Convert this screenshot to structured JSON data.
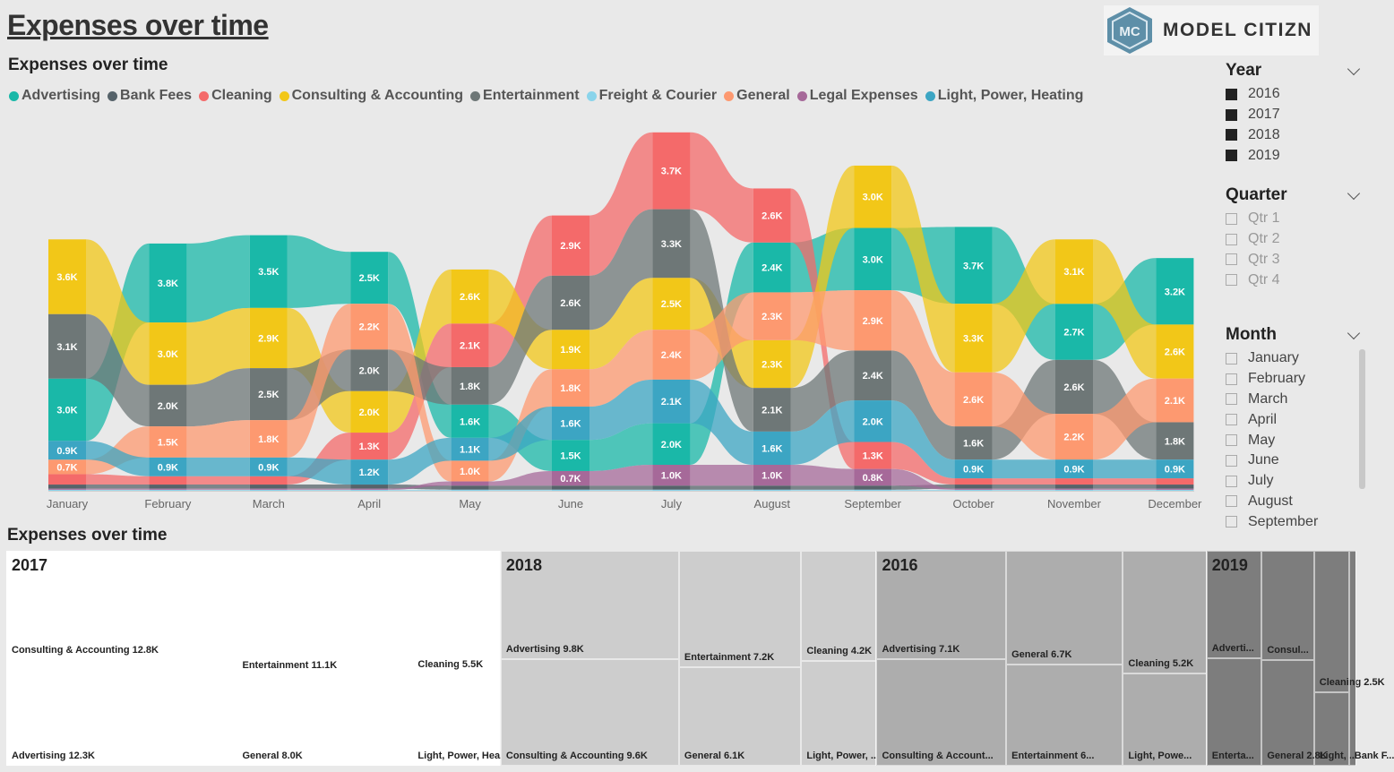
{
  "page": {
    "title": "Expenses over time"
  },
  "logo": {
    "text": "MODEL CITIZN",
    "glyph": "MC"
  },
  "ribbon": {
    "title": "Expenses over time"
  },
  "treemap": {
    "title": "Expenses over time"
  },
  "colors": {
    "Advertising": "#1ab8a8",
    "Bank Fees": "#56636a",
    "Cleaning": "#f46a6a",
    "Consulting & Accounting": "#f2c718",
    "Entertainment": "#6e7777",
    "Freight & Courier": "#8ad4eb",
    "General": "#fd9970",
    "Legal Expenses": "#a66999",
    "Light, Power, Heating": "#3ca5c3"
  },
  "chart_data": [
    {
      "type": "ribbon",
      "title": "Expenses over time",
      "legend_position": "top-left",
      "legend": [
        "Advertising",
        "Bank Fees",
        "Cleaning",
        "Consulting & Accounting",
        "Entertainment",
        "Freight & Courier",
        "General",
        "Legal Expenses",
        "Light, Power, Heating"
      ],
      "categories": [
        "January",
        "February",
        "March",
        "April",
        "May",
        "June",
        "July",
        "August",
        "September",
        "October",
        "November",
        "December"
      ],
      "series": [
        {
          "name": "Advertising",
          "values": [
            3.0,
            3.8,
            3.5,
            2.5,
            1.6,
            1.5,
            2.0,
            2.4,
            3.0,
            3.7,
            2.7,
            3.2
          ],
          "labels": [
            "3.0K",
            "3.8K",
            "3.5K",
            "2.5K",
            "1.6K",
            "1.5K",
            "2.0K",
            "2.4K",
            "3.0K",
            "3.7K",
            "2.7K",
            "3.2K"
          ]
        },
        {
          "name": "Bank Fees",
          "values": [
            0.2,
            0.2,
            0.2,
            0.2,
            0.2,
            0.2,
            0.2,
            0.2,
            0.2,
            0.2,
            0.2,
            0.2
          ],
          "labels": [
            "",
            "",
            "",
            "",
            "",
            "",
            "",
            "",
            "",
            "",
            "",
            ""
          ]
        },
        {
          "name": "Cleaning",
          "values": [
            0.5,
            0.4,
            0.4,
            1.3,
            2.1,
            2.9,
            3.7,
            2.6,
            1.3,
            0.3,
            0.3,
            0.3
          ],
          "labels": [
            "",
            "",
            "",
            "1.3K",
            "2.1K",
            "2.9K",
            "3.7K",
            "2.6K",
            "1.3K",
            "",
            "",
            ""
          ]
        },
        {
          "name": "Consulting & Accounting",
          "values": [
            3.6,
            3.0,
            2.9,
            2.0,
            2.6,
            1.9,
            2.5,
            2.3,
            3.0,
            3.3,
            3.1,
            2.6
          ],
          "labels": [
            "3.6K",
            "3.0K",
            "2.9K",
            "2.0K",
            "2.6K",
            "1.9K",
            "2.5K",
            "2.3K",
            "3.0K",
            "3.3K",
            "3.1K",
            "2.6K"
          ]
        },
        {
          "name": "Entertainment",
          "values": [
            3.1,
            2.0,
            2.5,
            2.0,
            1.8,
            2.6,
            3.3,
            2.1,
            2.4,
            1.6,
            2.6,
            1.8
          ],
          "labels": [
            "3.1K",
            "2.0K",
            "2.5K",
            "2.0K",
            "1.8K",
            "2.6K",
            "3.3K",
            "2.1K",
            "2.4K",
            "1.6K",
            "2.6K",
            "1.8K"
          ]
        },
        {
          "name": "Freight & Courier",
          "values": [
            0.05,
            0.05,
            0.05,
            0.05,
            0.05,
            0.05,
            0.05,
            0.05,
            0.05,
            0.05,
            0.05,
            0.05
          ],
          "labels": [
            "",
            "",
            "",
            "",
            "",
            "",
            "",
            "",
            "",
            "",
            "",
            ""
          ]
        },
        {
          "name": "General",
          "values": [
            0.7,
            1.5,
            1.8,
            2.2,
            1.0,
            1.8,
            2.4,
            2.3,
            2.9,
            2.6,
            2.2,
            2.1
          ],
          "labels": [
            "0.7K",
            "1.5K",
            "1.8K",
            "2.2K",
            "1.0K",
            "1.8K",
            "2.4K",
            "2.3K",
            "2.9K",
            "2.6K",
            "2.2K",
            "2.1K"
          ]
        },
        {
          "name": "Legal Expenses",
          "values": [
            0.05,
            0.05,
            0.05,
            0.05,
            0.2,
            0.7,
            1.0,
            1.0,
            0.8,
            0.05,
            0.05,
            0.05
          ],
          "labels": [
            "",
            "",
            "",
            "",
            "",
            "0.7K",
            "1.0K",
            "1.0K",
            "0.8K",
            "",
            "",
            ""
          ]
        },
        {
          "name": "Light, Power, Heating",
          "values": [
            0.9,
            0.9,
            0.9,
            1.2,
            1.1,
            1.6,
            2.1,
            1.6,
            2.0,
            0.9,
            0.9,
            0.9
          ],
          "labels": [
            "0.9K",
            "0.9K",
            "0.9K",
            "1.2K",
            "1.1K",
            "1.6K",
            "2.1K",
            "1.6K",
            "2.0K",
            "0.9K",
            "0.9K",
            "0.9K"
          ]
        }
      ]
    },
    {
      "type": "treemap",
      "title": "Expenses over time",
      "groups": [
        {
          "name": "2017",
          "items": [
            {
              "label": "Consulting & Accounting 12.8K",
              "category": "Consulting & Accounting",
              "value": 12.8
            },
            {
              "label": "Advertising 12.3K",
              "category": "Advertising",
              "value": 12.3
            },
            {
              "label": "Entertainment 11.1K",
              "category": "Entertainment",
              "value": 11.1
            },
            {
              "label": "General 8.0K",
              "category": "General",
              "value": 8.0
            },
            {
              "label": "Cleaning 5.5K",
              "category": "Cleaning",
              "value": 5.5
            },
            {
              "label": "Light, Power, Hea...",
              "category": "Light, Power, Heating",
              "value": 4.1
            }
          ]
        },
        {
          "name": "2018",
          "items": [
            {
              "label": "Advertising 9.8K",
              "category": "Advertising",
              "value": 9.8
            },
            {
              "label": "Consulting & Accounting 9.6K",
              "category": "Consulting & Accounting",
              "value": 9.6
            },
            {
              "label": "Entertainment 7.2K",
              "category": "Entertainment",
              "value": 7.2
            },
            {
              "label": "General 6.1K",
              "category": "General",
              "value": 6.1
            },
            {
              "label": "Cleaning 4.2K",
              "category": "Cleaning",
              "value": 4.2
            },
            {
              "label": "Light, Power, ...",
              "category": "Light, Power, Heating",
              "value": 4.0
            }
          ]
        },
        {
          "name": "2016",
          "items": [
            {
              "label": "Advertising 7.1K",
              "category": "Advertising",
              "value": 7.1
            },
            {
              "label": "Consulting & Account...",
              "category": "Consulting & Accounting",
              "value": 7.0
            },
            {
              "label": "General 6.7K",
              "category": "General",
              "value": 6.7
            },
            {
              "label": "Entertainment 6...",
              "category": "Entertainment",
              "value": 6.0
            },
            {
              "label": "Cleaning 5.2K",
              "category": "Cleaning",
              "value": 5.2
            },
            {
              "label": "Light, Powe...",
              "category": "Light, Power, Heating",
              "value": 3.9
            }
          ]
        },
        {
          "name": "2019",
          "items": [
            {
              "label": "Adverti...",
              "category": "Advertising",
              "value": 3.0
            },
            {
              "label": "Enterta...",
              "category": "Entertainment",
              "value": 3.0
            },
            {
              "label": "Consul...",
              "category": "Consulting & Accounting",
              "value": 2.9
            },
            {
              "label": "General 2.8K",
              "category": "General",
              "value": 2.8
            },
            {
              "label": "Cleaning 2.5K",
              "category": "Cleaning",
              "value": 2.5
            },
            {
              "label": "Light, ...",
              "category": "Light, Power, Heating",
              "value": 1.3
            },
            {
              "label": "Bank F...",
              "category": "Bank Fees",
              "value": 0.8
            }
          ]
        }
      ]
    }
  ],
  "slicers": [
    {
      "title": "Year",
      "options": [
        {
          "label": "2016",
          "checked": true
        },
        {
          "label": "2017",
          "checked": true
        },
        {
          "label": "2018",
          "checked": true
        },
        {
          "label": "2019",
          "checked": true
        }
      ]
    },
    {
      "title": "Quarter",
      "options": [
        {
          "label": "Qtr 1",
          "checked": false
        },
        {
          "label": "Qtr 2",
          "checked": false
        },
        {
          "label": "Qtr 3",
          "checked": false
        },
        {
          "label": "Qtr 4",
          "checked": false
        }
      ]
    },
    {
      "title": "Month",
      "options": [
        {
          "label": "January",
          "checked": false
        },
        {
          "label": "February",
          "checked": false
        },
        {
          "label": "March",
          "checked": false
        },
        {
          "label": "April",
          "checked": false
        },
        {
          "label": "May",
          "checked": false
        },
        {
          "label": "June",
          "checked": false
        },
        {
          "label": "July",
          "checked": false
        },
        {
          "label": "August",
          "checked": false
        },
        {
          "label": "September",
          "checked": false
        }
      ]
    }
  ],
  "icons": {
    "slicer_toggle": "chevron-down-icon",
    "logo": "logo-icon"
  }
}
